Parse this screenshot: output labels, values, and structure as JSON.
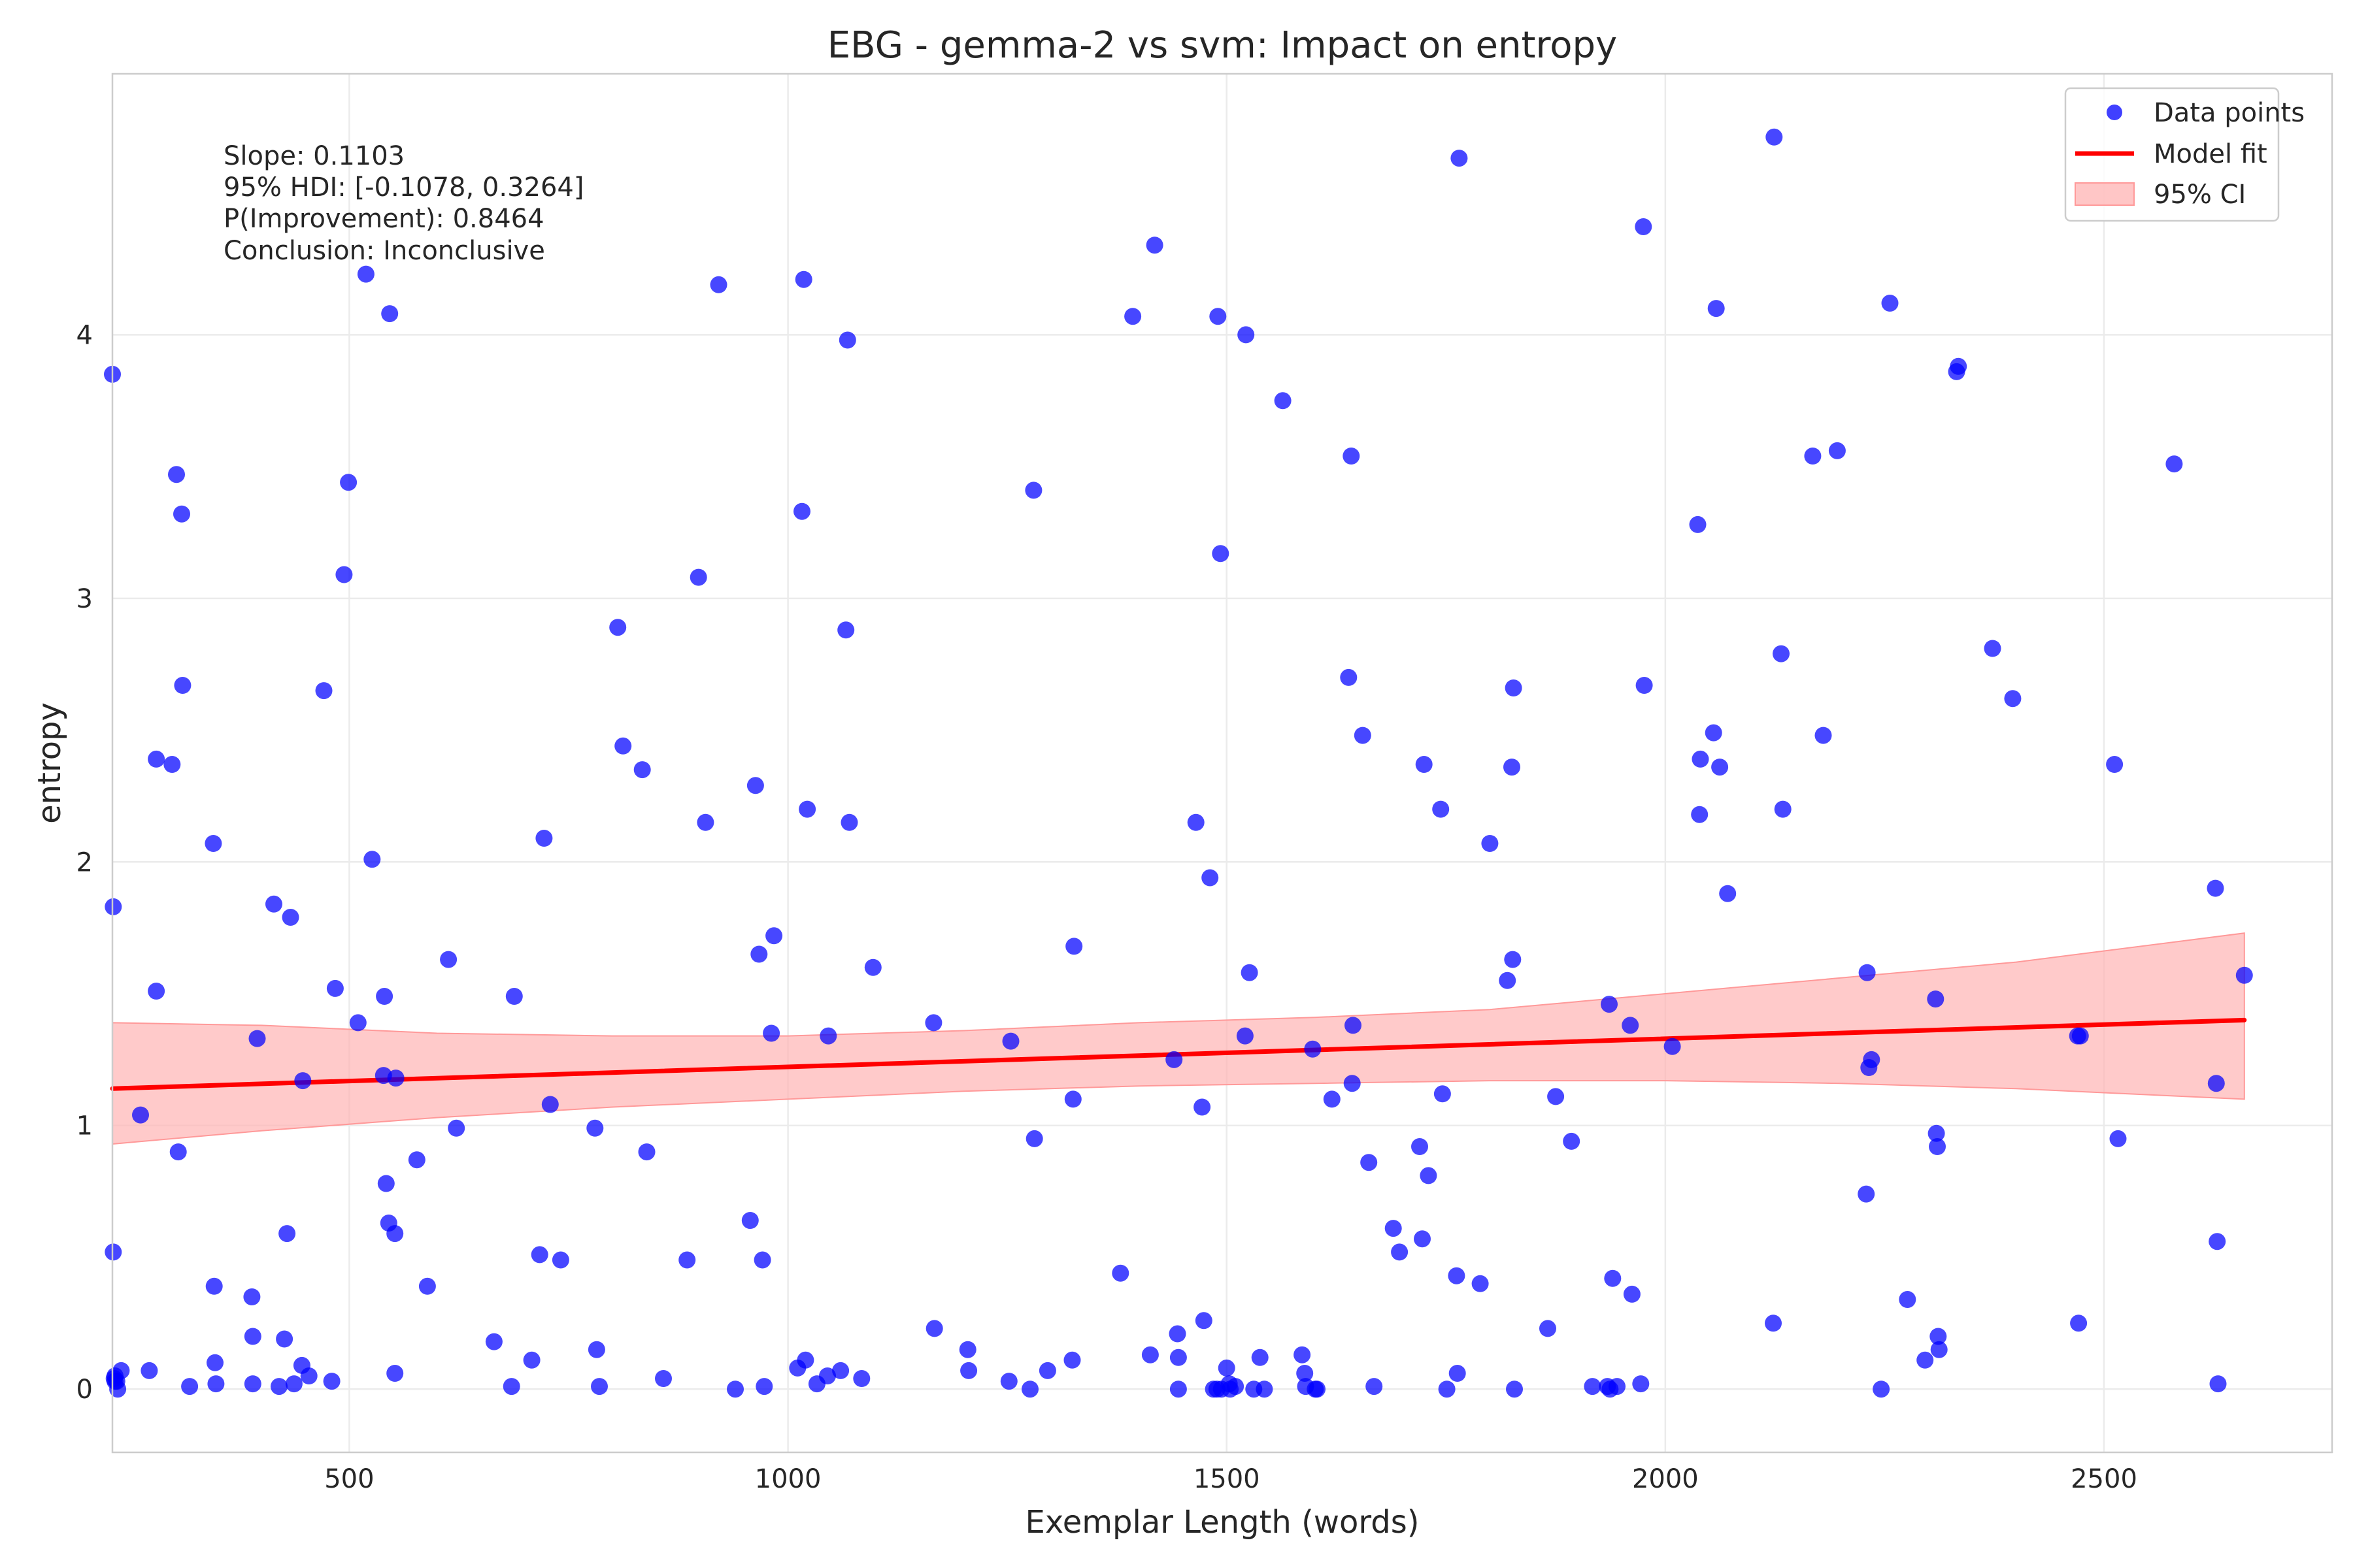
{
  "chart_data": {
    "type": "scatter",
    "title": "EBG - gemma-2 vs svm: Impact on entropy",
    "xlabel": "Exemplar Length (words)",
    "ylabel": "entropy",
    "xlim": [
      230,
      2760
    ],
    "ylim": [
      -0.24,
      4.99
    ],
    "xticks": [
      500,
      1000,
      1500,
      2000,
      2500
    ],
    "yticks": [
      0,
      1,
      2,
      3,
      4
    ],
    "grid": true,
    "legend_position": "top-right",
    "legend": {
      "points_label": "Data points",
      "fit_label": "Model fit",
      "ci_label": "95% CI"
    },
    "colors": {
      "points": "#0000ff",
      "fit": "#ff0000",
      "ci": "#ffb3b3"
    },
    "stats": [
      "Slope: 0.1103",
      "95% HDI: [-0.1078, 0.3264]",
      "P(Improvement): 0.8464",
      "Conclusion: Inconclusive"
    ],
    "fit_line": {
      "x": [
        230,
        2660
      ],
      "y": [
        1.14,
        1.4
      ]
    },
    "ci_band": {
      "x": [
        230,
        400,
        600,
        800,
        1000,
        1200,
        1400,
        1600,
        1800,
        2000,
        2200,
        2400,
        2660
      ],
      "lower": [
        0.93,
        0.98,
        1.03,
        1.07,
        1.1,
        1.13,
        1.15,
        1.16,
        1.17,
        1.17,
        1.16,
        1.14,
        1.1
      ],
      "upper": [
        1.39,
        1.38,
        1.35,
        1.34,
        1.34,
        1.36,
        1.39,
        1.41,
        1.44,
        1.5,
        1.56,
        1.62,
        1.73
      ]
    },
    "series": [
      {
        "name": "Data points",
        "x": [
          230,
          231,
          231,
          232,
          233,
          233,
          235,
          236,
          240,
          262,
          272,
          280,
          280,
          298,
          303,
          305,
          309,
          310,
          318,
          345,
          346,
          347,
          348,
          389,
          390,
          390,
          395,
          414,
          420,
          426,
          429,
          433,
          437,
          446,
          447,
          454,
          471,
          480,
          484,
          494,
          499,
          510,
          519,
          526,
          539,
          540,
          542,
          545,
          546,
          552,
          552,
          553,
          577,
          589,
          613,
          622,
          665,
          685,
          688,
          708,
          717,
          722,
          729,
          741,
          780,
          782,
          785,
          806,
          812,
          834,
          839,
          858,
          885,
          898,
          906,
          921,
          940,
          957,
          963,
          967,
          971,
          973,
          981,
          984,
          1011,
          1016,
          1018,
          1020,
          1022,
          1033,
          1045,
          1046,
          1060,
          1066,
          1068,
          1070,
          1084,
          1097,
          1166,
          1167,
          1205,
          1206,
          1252,
          1254,
          1276,
          1280,
          1281,
          1296,
          1324,
          1325,
          1326,
          1379,
          1393,
          1413,
          1418,
          1440,
          1444,
          1445,
          1445,
          1465,
          1472,
          1474,
          1481,
          1485,
          1489,
          1490,
          1493,
          1494,
          1500,
          1503,
          1504,
          1510,
          1521,
          1522,
          1526,
          1531,
          1538,
          1543,
          1564,
          1586,
          1589,
          1590,
          1598,
          1601,
          1603,
          1620,
          1639,
          1642,
          1643,
          1644,
          1655,
          1662,
          1668,
          1690,
          1697,
          1720,
          1723,
          1725,
          1730,
          1744,
          1746,
          1751,
          1762,
          1763,
          1765,
          1789,
          1800,
          1820,
          1825,
          1826,
          1827,
          1828,
          1866,
          1875,
          1893,
          1917,
          1934,
          1936,
          1937,
          1940,
          1945,
          1960,
          1962,
          1972,
          1975,
          1976,
          2008,
          2037,
          2039,
          2040,
          2055,
          2058,
          2062,
          2071,
          2123,
          2124,
          2132,
          2134,
          2168,
          2180,
          2196,
          2229,
          2230,
          2232,
          2235,
          2246,
          2256,
          2276,
          2296,
          2308,
          2309,
          2310,
          2311,
          2312,
          2332,
          2334,
          2373,
          2396,
          2470,
          2471,
          2473,
          2512,
          2516,
          2580,
          2627,
          2628,
          2629,
          2630,
          2660
        ],
        "y": [
          3.85,
          1.83,
          0.52,
          0.04,
          0.05,
          0.03,
          0.03,
          0.0,
          0.07,
          1.04,
          0.07,
          2.39,
          1.51,
          2.37,
          3.47,
          0.9,
          3.32,
          2.67,
          0.01,
          2.07,
          0.39,
          0.1,
          0.02,
          0.35,
          0.2,
          0.02,
          1.33,
          1.84,
          0.01,
          0.19,
          0.59,
          1.79,
          0.02,
          0.09,
          1.17,
          0.05,
          2.65,
          0.03,
          1.52,
          3.09,
          3.44,
          1.39,
          4.23,
          2.01,
          1.19,
          1.49,
          0.78,
          0.63,
          4.08,
          0.06,
          0.59,
          1.18,
          0.87,
          0.39,
          1.63,
          0.99,
          0.18,
          0.01,
          1.49,
          0.11,
          0.51,
          2.09,
          1.08,
          0.49,
          0.99,
          0.15,
          0.01,
          2.89,
          2.44,
          2.35,
          0.9,
          0.04,
          0.49,
          3.08,
          2.15,
          4.19,
          0.0,
          0.64,
          2.29,
          1.65,
          0.49,
          0.01,
          1.35,
          1.72,
          0.08,
          3.33,
          4.21,
          0.11,
          2.2,
          0.02,
          0.05,
          1.34,
          0.07,
          2.88,
          3.98,
          2.15,
          0.04,
          1.6,
          1.39,
          0.23,
          0.15,
          0.07,
          0.03,
          1.32,
          0.0,
          3.41,
          0.95,
          0.07,
          0.11,
          1.1,
          1.68,
          0.44,
          4.07,
          0.13,
          4.34,
          1.25,
          0.21,
          0.12,
          0.0,
          2.15,
          1.07,
          0.26,
          1.94,
          0.0,
          0.0,
          4.07,
          3.17,
          0.0,
          0.08,
          0.02,
          0.0,
          0.01,
          1.34,
          4.0,
          1.58,
          0.0,
          0.12,
          0.0,
          3.75,
          0.13,
          0.06,
          0.01,
          1.29,
          0.0,
          0.0,
          1.1,
          2.7,
          3.54,
          1.16,
          1.38,
          2.48,
          0.86,
          0.01,
          0.61,
          0.52,
          0.92,
          0.57,
          2.37,
          0.81,
          2.2,
          1.12,
          0.0,
          0.43,
          0.06,
          4.67,
          0.4,
          2.07,
          1.55,
          2.36,
          1.63,
          2.66,
          0.0,
          0.23,
          1.11,
          0.94,
          0.01,
          0.01,
          1.46,
          0.0,
          0.42,
          0.01,
          1.38,
          0.36,
          0.02,
          4.41,
          2.67,
          1.3,
          3.28,
          2.18,
          2.39,
          2.49,
          4.1,
          2.36,
          1.88,
          0.25,
          4.75,
          2.79,
          2.2,
          3.54,
          2.48,
          3.56,
          0.74,
          1.58,
          1.22,
          1.25,
          0.0,
          4.12,
          0.34,
          0.11,
          1.48,
          0.97,
          0.92,
          0.2,
          0.15,
          3.86,
          3.88,
          2.81,
          2.62,
          1.34,
          0.25,
          1.34,
          2.37,
          0.95,
          3.51,
          1.9,
          1.16,
          0.56,
          0.02,
          1.57
        ]
      }
    ]
  }
}
